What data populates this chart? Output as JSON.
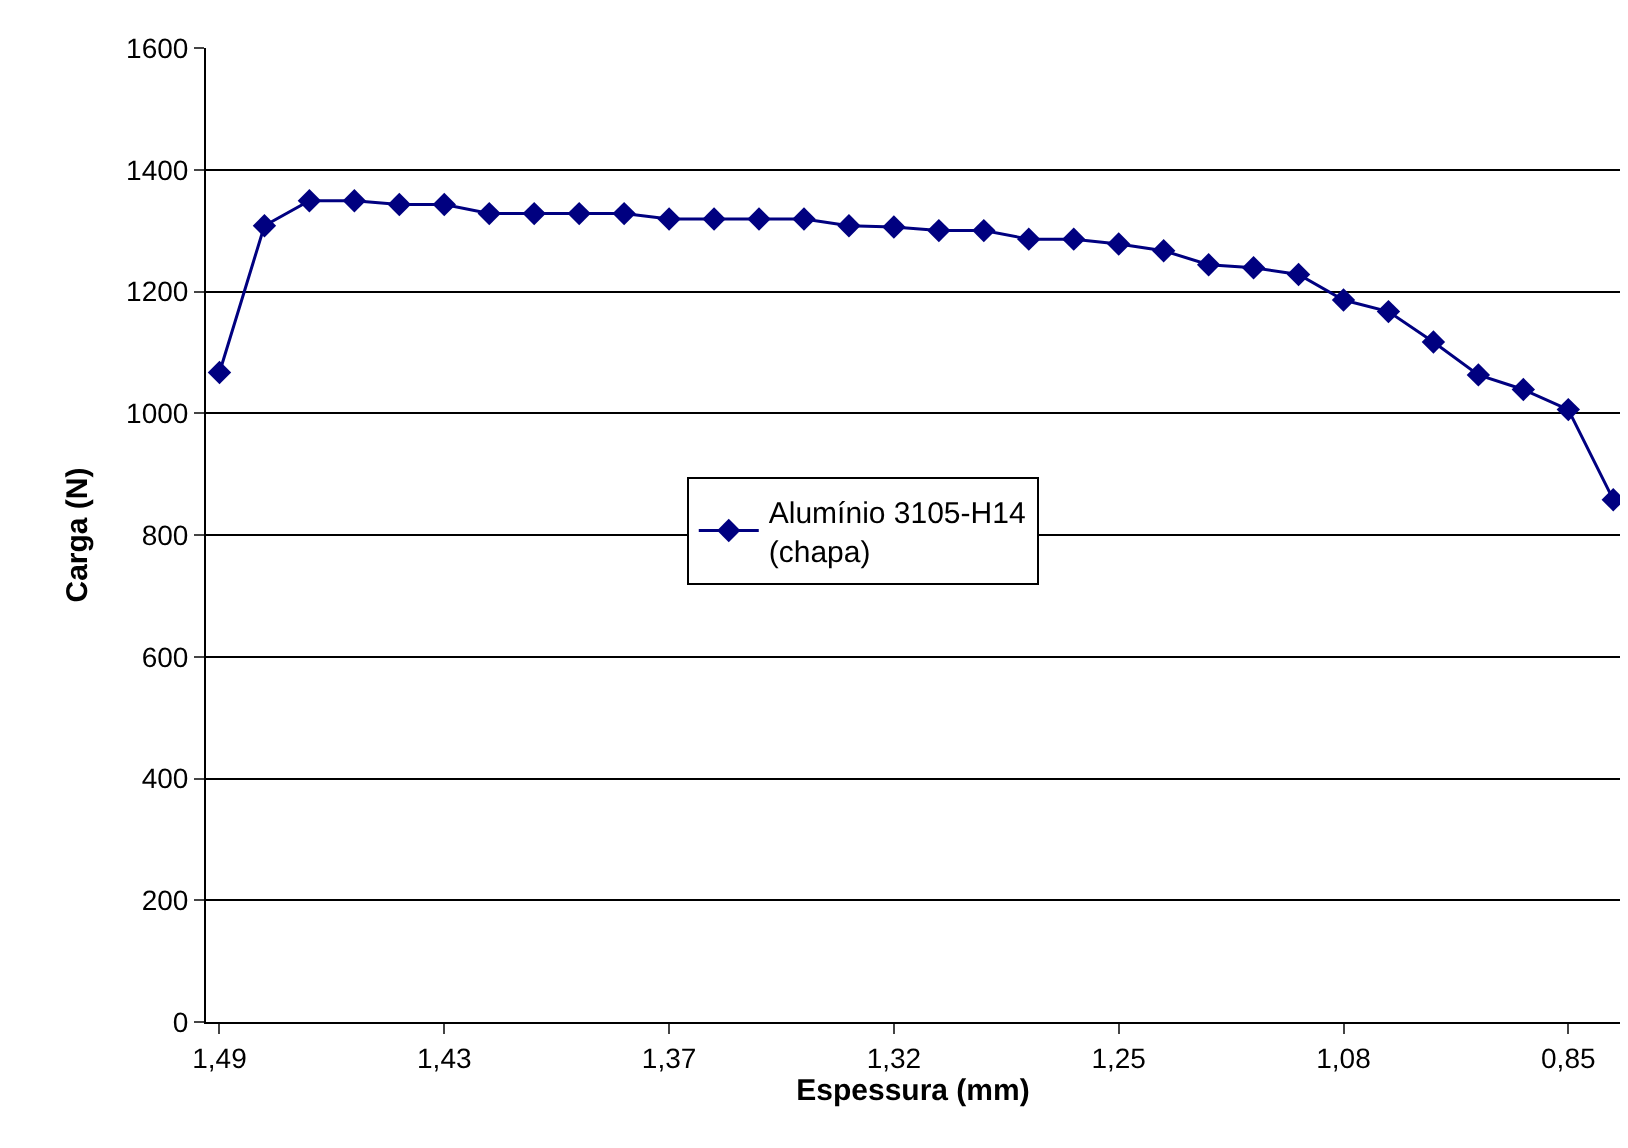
{
  "chart_data": {
    "type": "line",
    "xlabel": "Espessura (mm)",
    "ylabel": "Carga (N)",
    "categories": [
      "1,49",
      null,
      null,
      null,
      null,
      "1,43",
      null,
      null,
      null,
      null,
      "1,37",
      null,
      null,
      null,
      null,
      "1,32",
      null,
      null,
      null,
      null,
      "1,25",
      null,
      null,
      null,
      null,
      "1,08",
      null,
      null,
      null,
      null,
      "0,85",
      null
    ],
    "series": [
      {
        "name": "Alumínio 3105-H14\n(chapa)",
        "color": "#000080",
        "values": [
          1067,
          1308,
          1349,
          1349,
          1343,
          1343,
          1328,
          1328,
          1328,
          1328,
          1319,
          1319,
          1319,
          1319,
          1308,
          1306,
          1300,
          1300,
          1286,
          1286,
          1278,
          1267,
          1244,
          1239,
          1228,
          1186,
          1167,
          1117,
          1063,
          1039,
          1006,
          858
        ]
      }
    ],
    "ylim": [
      0,
      1600
    ],
    "yticks": [
      0,
      200,
      400,
      600,
      800,
      1000,
      1200,
      1400,
      1600
    ],
    "grid": "y",
    "legend": "center",
    "marker": "diamond",
    "line_style": "solid"
  }
}
